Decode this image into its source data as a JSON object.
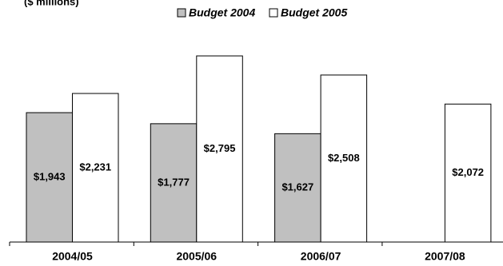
{
  "chart_data": {
    "type": "bar",
    "subtitle": "($ millions)",
    "categories": [
      "2004/05",
      "2005/06",
      "2006/07",
      "2007/08"
    ],
    "series": [
      {
        "name": "Budget 2004",
        "color": "#c0c0c0",
        "values": [
          1943,
          1777,
          1627,
          null
        ],
        "value_labels": [
          "$1,943",
          "$1,777",
          "$1,627",
          null
        ]
      },
      {
        "name": "Budget 2005",
        "color": "#ffffff",
        "values": [
          2231,
          2795,
          2508,
          2072
        ],
        "value_labels": [
          "$2,231",
          "$2,795",
          "$2,508",
          "$2,072"
        ]
      }
    ]
  }
}
